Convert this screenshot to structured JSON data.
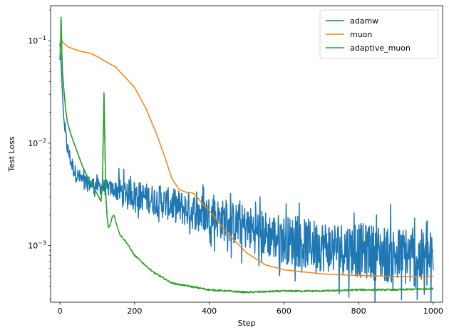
{
  "chart_data": {
    "type": "line",
    "title": "",
    "xlabel": "Step",
    "ylabel": "Test Loss",
    "xlim": [
      -25,
      1025
    ],
    "ylim": [
      0.00028,
      0.22
    ],
    "yscale": "log",
    "grid": false,
    "legend_position": "top-right",
    "x_ticks": [
      0,
      200,
      400,
      600,
      800,
      1000
    ],
    "x_tick_labels": [
      "0",
      "200",
      "400",
      "600",
      "800",
      "1000"
    ],
    "y_major_ticks": [
      0.001,
      0.01,
      0.1
    ],
    "y_tick_labels": [
      {
        "base": "10",
        "exp": "−3"
      },
      {
        "base": "10",
        "exp": "−2"
      },
      {
        "base": "10",
        "exp": "−1"
      }
    ],
    "series": [
      {
        "name": "adamw",
        "color": "#1f77b4",
        "noise": "high",
        "x": [
          0,
          3,
          6,
          10,
          15,
          20,
          30,
          40,
          50,
          60,
          70,
          80,
          90,
          100,
          120,
          150,
          200,
          250,
          300,
          350,
          400,
          450,
          500,
          550,
          600,
          650,
          700,
          750,
          800,
          850,
          900,
          950,
          1000
        ],
        "y": [
          0.095,
          0.06,
          0.035,
          0.018,
          0.012,
          0.009,
          0.0065,
          0.0052,
          0.0047,
          0.0043,
          0.0041,
          0.004,
          0.0039,
          0.0038,
          0.0037,
          0.0035,
          0.0032,
          0.0028,
          0.0025,
          0.0022,
          0.002,
          0.0017,
          0.0015,
          0.0013,
          0.00115,
          0.00105,
          0.001,
          0.00095,
          0.0009,
          0.00085,
          0.0008,
          0.00075,
          0.0007
        ]
      },
      {
        "name": "muon",
        "color": "#ff7f0e",
        "noise": "none",
        "x": [
          0,
          5,
          10,
          20,
          40,
          60,
          80,
          100,
          150,
          200,
          230,
          260,
          280,
          300,
          320,
          340,
          350,
          360,
          370,
          380,
          400,
          450,
          500,
          550,
          600,
          700,
          800,
          900,
          1000
        ],
        "y": [
          0.105,
          0.1,
          0.095,
          0.088,
          0.082,
          0.078,
          0.076,
          0.07,
          0.055,
          0.035,
          0.022,
          0.012,
          0.0075,
          0.0045,
          0.0035,
          0.0033,
          0.0033,
          0.0032,
          0.0029,
          0.0026,
          0.0022,
          0.0013,
          0.00085,
          0.00065,
          0.00058,
          0.00053,
          0.00051,
          0.0005,
          0.0005
        ]
      },
      {
        "name": "adaptive_muon",
        "color": "#2ca02c",
        "noise": "low",
        "x": [
          0,
          2,
          3,
          4,
          5,
          7,
          10,
          15,
          20,
          30,
          40,
          60,
          80,
          100,
          110,
          114,
          116,
          118,
          120,
          123,
          127,
          130,
          135,
          140,
          145,
          150,
          160,
          180,
          200,
          250,
          300,
          400,
          500,
          600,
          700,
          800,
          900,
          1000
        ],
        "y": [
          0.065,
          0.1,
          0.17,
          0.13,
          0.08,
          0.05,
          0.035,
          0.022,
          0.016,
          0.012,
          0.0095,
          0.006,
          0.0042,
          0.0032,
          0.0027,
          0.004,
          0.012,
          0.031,
          0.012,
          0.003,
          0.0018,
          0.0015,
          0.0016,
          0.0019,
          0.002,
          0.0017,
          0.0013,
          0.00105,
          0.0008,
          0.00055,
          0.00043,
          0.00037,
          0.00035,
          0.00036,
          0.00036,
          0.00037,
          0.00037,
          0.00038
        ]
      }
    ]
  }
}
